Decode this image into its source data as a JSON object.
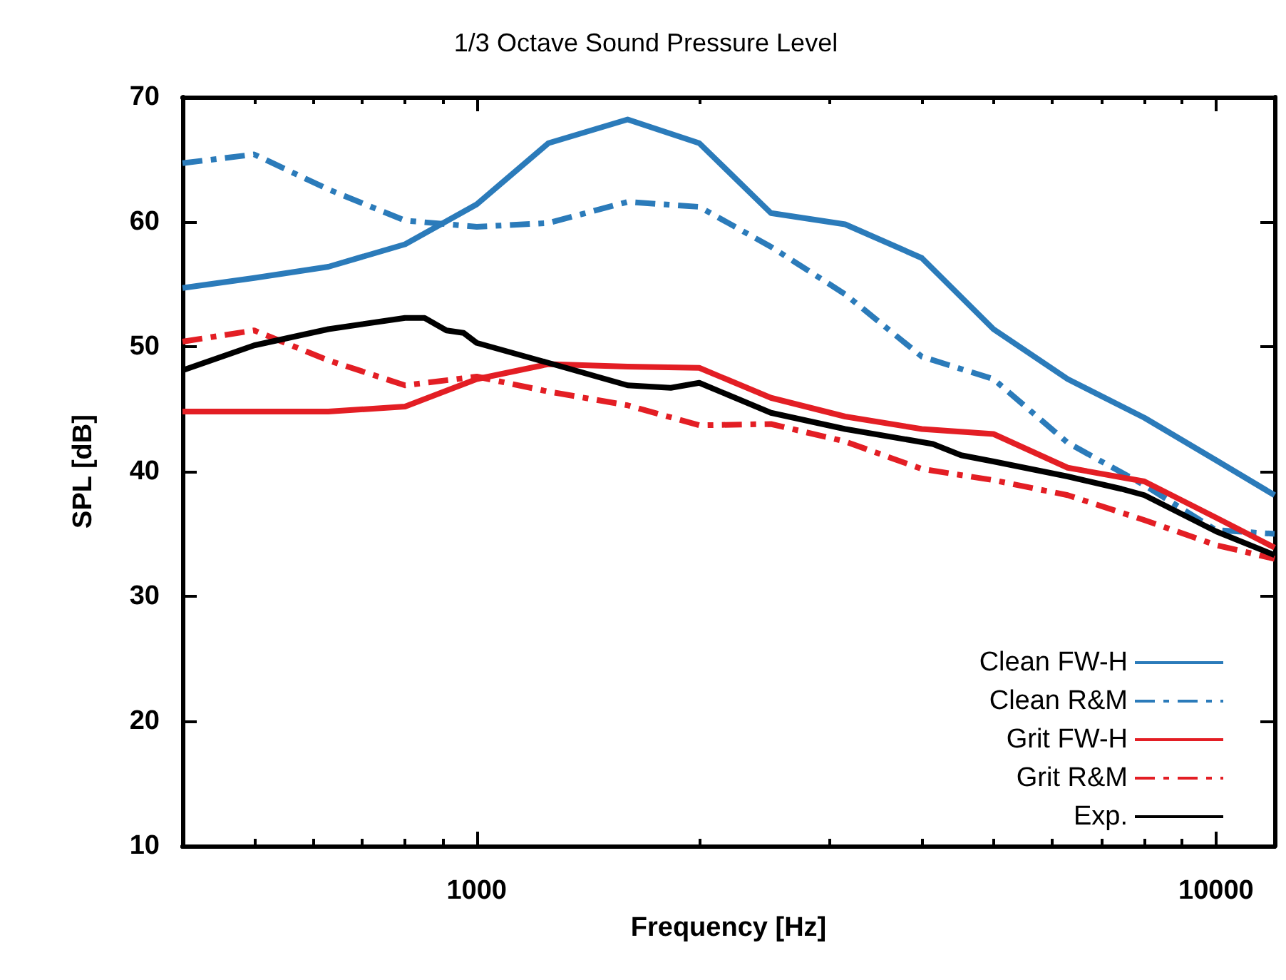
{
  "chart_data": {
    "type": "line",
    "title": "1/3 Octave Sound Pressure Level",
    "xlabel": "Frequency [Hz]",
    "ylabel": "SPL [dB]",
    "log": "x",
    "x": [
      400,
      500,
      630,
      800,
      1000,
      1250,
      1600,
      2000,
      2500,
      3150,
      4000,
      5000,
      6300,
      8000,
      10000,
      12000
    ],
    "xlim": [
      400,
      12000
    ],
    "xticks": [
      {
        "value": 500,
        "label": null
      },
      {
        "value": 600,
        "label": null
      },
      {
        "value": 700,
        "label": null
      },
      {
        "value": 800,
        "label": null
      },
      {
        "value": 900,
        "label": null
      },
      1000,
      {
        "value": 2000,
        "label": null
      },
      {
        "value": 3000,
        "label": null
      },
      {
        "value": 4000,
        "label": null
      },
      {
        "value": 5000,
        "label": null
      },
      {
        "value": 6000,
        "label": null
      },
      {
        "value": 7000,
        "label": null
      },
      {
        "value": 8000,
        "label": null
      },
      {
        "value": 9000,
        "label": null
      },
      10000
    ],
    "ylim": [
      10,
      70
    ],
    "yticks": [
      10,
      20,
      30,
      40,
      50,
      60,
      70
    ],
    "grid": false,
    "legend": "bottom right",
    "marker": "none",
    "series": [
      {
        "name": "Clean FW-H",
        "color": "#2b7bba",
        "line_style": "solid",
        "values": [
          54.7,
          55.5,
          56.4,
          58.2,
          61.4,
          66.3,
          68.2,
          66.3,
          60.7,
          59.8,
          57.1,
          51.4,
          47.4,
          44.3,
          40.9,
          38.1
        ]
      },
      {
        "name": "Clean R&M",
        "color": "#2b7bba",
        "line_style": "dashdot",
        "values": [
          64.7,
          65.4,
          62.6,
          60.1,
          59.6,
          59.9,
          61.6,
          61.2,
          58.0,
          54.2,
          49.2,
          47.4,
          42.3,
          38.9,
          35.3,
          35.0
        ]
      },
      {
        "name": "Grit FW-H",
        "color": "#e31e24",
        "line_style": "solid",
        "values": [
          44.8,
          44.8,
          44.8,
          45.2,
          47.4,
          48.6,
          48.4,
          48.3,
          45.9,
          44.4,
          43.4,
          43.0,
          40.3,
          39.2,
          36.3,
          33.9
        ]
      },
      {
        "name": "Grit R&M",
        "color": "#e31e24",
        "line_style": "dashdot",
        "values": [
          50.4,
          51.3,
          48.9,
          46.9,
          47.6,
          46.4,
          45.3,
          43.7,
          43.8,
          42.4,
          40.2,
          39.3,
          38.1,
          36.1,
          34.1,
          33.0
        ]
      },
      {
        "name": "Exp.",
        "color": "#000000",
        "line_style": "solid",
        "x": [
          400,
          500,
          630,
          800,
          850,
          910,
          960,
          1000,
          1250,
          1600,
          1830,
          2000,
          2500,
          3150,
          4140,
          4520,
          5000,
          6300,
          7450,
          8000,
          10000,
          12000
        ],
        "values": [
          48.1,
          50.1,
          51.4,
          52.3,
          52.3,
          51.3,
          51.1,
          50.3,
          48.7,
          46.9,
          46.7,
          47.1,
          44.7,
          43.4,
          42.2,
          41.3,
          40.8,
          39.6,
          38.6,
          38.1,
          35.2,
          33.3
        ]
      }
    ]
  }
}
